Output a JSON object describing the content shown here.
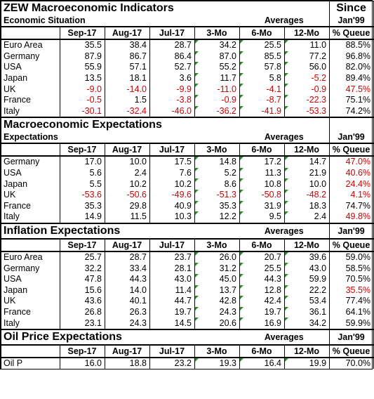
{
  "sections": [
    {
      "title": "ZEW Macroeconomic Indicators",
      "title_right": "Since",
      "sub_left": "Economic Situation",
      "sub_mid": "Averages",
      "sub_right": "Jan'99",
      "headers": [
        "Sep-17",
        "Aug-17",
        "Jul-17",
        "3-Mo",
        "6-Mo",
        "12-Mo",
        "% Queue"
      ],
      "header_first": "",
      "rows": [
        {
          "name": "Euro Area",
          "v": [
            "35.5",
            "38.4",
            "28.7",
            "34.2",
            "25.5",
            "11.0",
            "88.5%"
          ],
          "red": [
            false,
            false,
            false,
            false,
            false,
            false,
            false
          ]
        },
        {
          "name": "Germany",
          "v": [
            "87.9",
            "86.7",
            "86.4",
            "87.0",
            "85.5",
            "77.2",
            "96.8%"
          ],
          "red": [
            false,
            false,
            false,
            false,
            false,
            false,
            false
          ]
        },
        {
          "name": "USA",
          "v": [
            "55.9",
            "57.1",
            "52.7",
            "55.2",
            "57.8",
            "56.0",
            "82.0%"
          ],
          "red": [
            false,
            false,
            false,
            false,
            false,
            false,
            false
          ]
        },
        {
          "name": "Japan",
          "v": [
            "13.5",
            "18.1",
            "3.6",
            "11.7",
            "5.8",
            "-5.2",
            "89.4%"
          ],
          "red": [
            false,
            false,
            false,
            false,
            false,
            true,
            false
          ]
        },
        {
          "name": "UK",
          "v": [
            "-9.0",
            "-14.0",
            "-9.9",
            "-11.0",
            "-4.1",
            "-0.9",
            "47.5%"
          ],
          "red": [
            true,
            true,
            true,
            true,
            true,
            true,
            true
          ]
        },
        {
          "name": "France",
          "v": [
            "-0.5",
            "1.5",
            "-3.8",
            "-0.9",
            "-8.7",
            "-22.3",
            "75.1%"
          ],
          "red": [
            true,
            false,
            true,
            true,
            true,
            true,
            false
          ]
        },
        {
          "name": "Italy",
          "v": [
            "-30.1",
            "-32.4",
            "-46.0",
            "-36.2",
            "-41.9",
            "-53.3",
            "74.2%"
          ],
          "red": [
            true,
            true,
            true,
            true,
            true,
            true,
            false
          ]
        }
      ]
    },
    {
      "title": "Macroeconomic Expectations",
      "title_right": "",
      "sub_left": "Expectations",
      "sub_mid": "Averages",
      "sub_right": "Jan'99",
      "headers": [
        "Sep-17",
        "Aug-17",
        "Jul-17",
        "3-Mo",
        "6-Mo",
        "12-Mo",
        "% Queue"
      ],
      "header_first": "",
      "rows": [
        {
          "name": "Germany",
          "v": [
            "17.0",
            "10.0",
            "17.5",
            "14.8",
            "17.2",
            "14.7",
            "47.0%"
          ],
          "red": [
            false,
            false,
            false,
            false,
            false,
            false,
            true
          ]
        },
        {
          "name": "USA",
          "v": [
            "5.6",
            "2.4",
            "7.6",
            "5.2",
            "11.3",
            "21.9",
            "40.6%"
          ],
          "red": [
            false,
            false,
            false,
            false,
            false,
            false,
            true
          ]
        },
        {
          "name": "Japan",
          "v": [
            "5.5",
            "10.2",
            "10.2",
            "8.6",
            "10.8",
            "10.0",
            "24.4%"
          ],
          "red": [
            false,
            false,
            false,
            false,
            false,
            false,
            true
          ]
        },
        {
          "name": "UK",
          "v": [
            "-53.6",
            "-50.6",
            "-49.6",
            "-51.3",
            "-50.8",
            "-48.2",
            "4.1%"
          ],
          "red": [
            true,
            true,
            true,
            true,
            true,
            true,
            true
          ]
        },
        {
          "name": "France",
          "v": [
            "35.3",
            "29.8",
            "40.9",
            "35.3",
            "31.9",
            "18.3",
            "74.7%"
          ],
          "red": [
            false,
            false,
            false,
            false,
            false,
            false,
            false
          ]
        },
        {
          "name": "Italy",
          "v": [
            "14.9",
            "11.5",
            "10.3",
            "12.2",
            "9.5",
            "2.4",
            "49.8%"
          ],
          "red": [
            false,
            false,
            false,
            false,
            false,
            false,
            true
          ]
        }
      ]
    },
    {
      "title": "Inflation Expectations",
      "title_right": "",
      "sub_left": "",
      "sub_mid": "Averages",
      "sub_right": "Jan'99",
      "inline_sub": true,
      "headers": [
        "Sep-17",
        "Aug-17",
        "Jul-17",
        "3-Mo",
        "6-Mo",
        "12-Mo",
        "% Queue"
      ],
      "header_first": "",
      "rows": [
        {
          "name": "Euro Area",
          "v": [
            "25.7",
            "28.7",
            "23.7",
            "26.0",
            "20.7",
            "39.6",
            "59.0%"
          ],
          "red": [
            false,
            false,
            false,
            false,
            false,
            false,
            false
          ]
        },
        {
          "name": "Germany",
          "v": [
            "32.2",
            "33.4",
            "28.1",
            "31.2",
            "25.5",
            "43.0",
            "58.5%"
          ],
          "red": [
            false,
            false,
            false,
            false,
            false,
            false,
            false
          ]
        },
        {
          "name": "USA",
          "v": [
            "47.8",
            "44.3",
            "43.0",
            "45.0",
            "44.3",
            "59.9",
            "70.5%"
          ],
          "red": [
            false,
            false,
            false,
            false,
            false,
            false,
            false
          ]
        },
        {
          "name": "Japan",
          "v": [
            "15.6",
            "14.0",
            "11.4",
            "13.7",
            "12.8",
            "22.2",
            "35.5%"
          ],
          "red": [
            false,
            false,
            false,
            false,
            false,
            false,
            true
          ]
        },
        {
          "name": "UK",
          "v": [
            "43.6",
            "40.1",
            "44.7",
            "42.8",
            "42.4",
            "53.4",
            "77.4%"
          ],
          "red": [
            false,
            false,
            false,
            false,
            false,
            false,
            false
          ]
        },
        {
          "name": "France",
          "v": [
            "26.8",
            "26.3",
            "19.7",
            "24.3",
            "19.7",
            "36.1",
            "64.1%"
          ],
          "red": [
            false,
            false,
            false,
            false,
            false,
            false,
            false
          ]
        },
        {
          "name": "Italy",
          "v": [
            "23.1",
            "24.3",
            "14.5",
            "20.6",
            "16.9",
            "34.2",
            "59.9%"
          ],
          "red": [
            false,
            false,
            false,
            false,
            false,
            false,
            false
          ]
        }
      ]
    },
    {
      "title": "Oil Price Expectations",
      "title_right": "",
      "sub_left": "",
      "sub_mid": "Averages",
      "sub_right": "Jan'99",
      "inline_sub": true,
      "headers": [
        "Sep-17",
        "Aug-17",
        "Jul-17",
        "3-Mo",
        "6-Mo",
        "12-Mo",
        "% Queue"
      ],
      "header_first": "",
      "rows": [
        {
          "name": "Oil P",
          "v": [
            "16.0",
            "18.8",
            "23.2",
            "19.3",
            "16.4",
            "19.9",
            "70.0%"
          ],
          "red": [
            false,
            false,
            false,
            false,
            false,
            false,
            false
          ]
        }
      ]
    }
  ],
  "colors": {
    "negative": "#d40000",
    "marker": "#2d8a2d"
  }
}
